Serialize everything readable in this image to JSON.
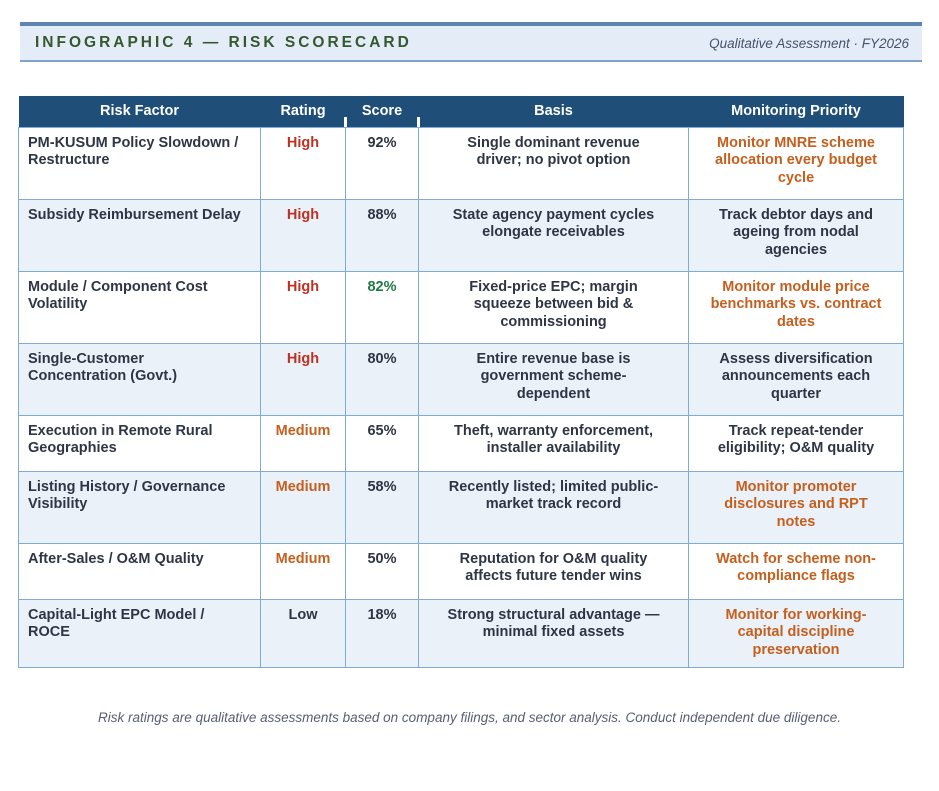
{
  "header": {
    "title": "INFOGRAPHIC 4 — RISK SCORECARD",
    "subtitle": "Qualitative Assessment · FY2026"
  },
  "table": {
    "columns": [
      "Risk Factor",
      "Rating",
      "Score",
      "Basis",
      "Monitoring Priority"
    ],
    "rows": [
      {
        "factor": "PM-KUSUM Policy Slowdown / Restructure",
        "rating": "High",
        "rating_color": "red",
        "score": "92%",
        "score_color": "dark",
        "basis": "Single dominant revenue driver; no pivot option",
        "monitoring": "Monitor MNRE scheme allocation every budget cycle",
        "monitoring_color": "orange"
      },
      {
        "factor": "Subsidy Reimbursement Delay",
        "rating": "High",
        "rating_color": "red",
        "score": "88%",
        "score_color": "dark",
        "basis": "State agency payment cycles elongate receivables",
        "monitoring": "Track debtor days and ageing from nodal agencies",
        "monitoring_color": "dark"
      },
      {
        "factor": "Module / Component Cost Volatility",
        "rating": "High",
        "rating_color": "red",
        "score": "82%",
        "score_color": "green",
        "basis": "Fixed-price EPC; margin squeeze between bid & commissioning",
        "monitoring": "Monitor module price benchmarks vs. contract dates",
        "monitoring_color": "orange"
      },
      {
        "factor": "Single-Customer Concentration (Govt.)",
        "rating": "High",
        "rating_color": "red",
        "score": "80%",
        "score_color": "dark",
        "basis": "Entire revenue base is government scheme-dependent",
        "monitoring": "Assess diversification announcements each quarter",
        "monitoring_color": "dark"
      },
      {
        "factor": "Execution in Remote Rural Geographies",
        "rating": "Medium",
        "rating_color": "orange",
        "score": "65%",
        "score_color": "dark",
        "basis": "Theft, warranty enforcement, installer availability",
        "monitoring": "Track repeat-tender eligibility; O&M quality",
        "monitoring_color": "dark"
      },
      {
        "factor": "Listing History / Governance Visibility",
        "rating": "Medium",
        "rating_color": "orange",
        "score": "58%",
        "score_color": "dark",
        "basis": "Recently listed; limited public-market track record",
        "monitoring": "Monitor promoter disclosures and RPT notes",
        "monitoring_color": "orange"
      },
      {
        "factor": "After-Sales / O&M Quality",
        "rating": "Medium",
        "rating_color": "orange",
        "score": "50%",
        "score_color": "dark",
        "basis": "Reputation for O&M quality affects future tender wins",
        "monitoring": "Watch for scheme non-compliance flags",
        "monitoring_color": "orange"
      },
      {
        "factor": "Capital-Light EPC Model / ROCE",
        "rating": "Low",
        "rating_color": "dark",
        "score": "18%",
        "score_color": "dark",
        "basis": "Strong structural advantage — minimal fixed assets",
        "monitoring": "Monitor for working-capital discipline preservation",
        "monitoring_color": "orange"
      }
    ]
  },
  "footnote": "Risk ratings are qualitative assessments based on company filings, and sector analysis. Conduct independent due diligence.",
  "colors": {
    "band_background": "#E3ECF7",
    "band_border": "#5E85B0",
    "title_green": "#35582E",
    "subtitle_navy": "#44546A",
    "header_navy": "#1F4E79",
    "cell_border_blue": "#7FACD6",
    "row_alt_blue": "#EAF1F8",
    "dark_text": "#2E3545",
    "high_red": "#BF3222",
    "medium_orange": "#C55F1E",
    "good_green": "#1E7B45"
  }
}
